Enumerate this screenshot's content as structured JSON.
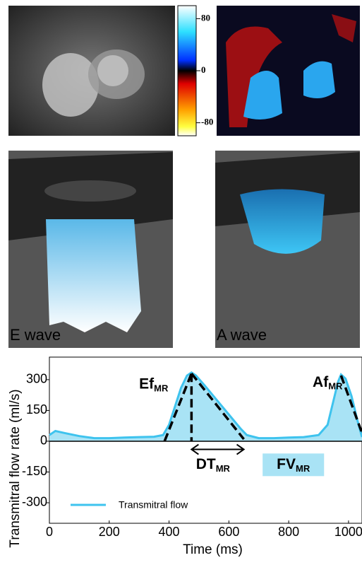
{
  "panels": {
    "colorbar": {
      "lim": [
        -100,
        100
      ],
      "ticks": [
        80,
        0,
        -80
      ]
    },
    "wave_labels": [
      "E wave",
      "A wave"
    ]
  },
  "chart_data": {
    "type": "line",
    "x_label": "Time (ms)",
    "y_label": "Transmitral flow rate (ml/s)",
    "x": [
      0,
      20,
      50,
      100,
      150,
      200,
      250,
      300,
      350,
      380,
      400,
      420,
      440,
      460,
      475,
      490,
      520,
      560,
      600,
      640,
      660,
      700,
      750,
      800,
      850,
      900,
      930,
      950,
      965,
      975,
      990,
      1010,
      1030,
      1045
    ],
    "series": [
      {
        "name": "Transmitral flow",
        "color": "#3ec3ee",
        "values": [
          30,
          50,
          40,
          25,
          15,
          15,
          18,
          20,
          22,
          30,
          80,
          170,
          260,
          320,
          335,
          320,
          270,
          200,
          130,
          60,
          30,
          15,
          15,
          18,
          20,
          30,
          80,
          200,
          290,
          325,
          305,
          220,
          100,
          20
        ]
      }
    ],
    "xlim": [
      0,
      1045
    ],
    "ylim": [
      -400,
      410
    ],
    "xticks": [
      0,
      200,
      400,
      600,
      800,
      1000
    ],
    "yticks": [
      300,
      150,
      0,
      -150,
      -300
    ],
    "fill_color": "#a9e3f5",
    "dashed_lines": [
      [
        [
          385,
          0
        ],
        [
          475,
          330
        ]
      ],
      [
        [
          475,
          330
        ],
        [
          650,
          10
        ]
      ],
      [
        [
          475,
          330
        ],
        [
          475,
          0
        ]
      ],
      [
        [
          975,
          320
        ],
        [
          1045,
          40
        ]
      ]
    ],
    "arrow": [
      [
        475,
        650
      ],
      -40
    ],
    "annotations": [
      {
        "text": "Ef",
        "sub": "MR",
        "at": [
          300,
          275
        ]
      },
      {
        "text": "Af",
        "sub": "MR",
        "at": [
          880,
          285
        ]
      },
      {
        "text": "DT",
        "sub": "MR",
        "at": [
          490,
          -115
        ]
      },
      {
        "text": "FV",
        "sub": "MR",
        "at": [
          760,
          -115
        ]
      }
    ]
  }
}
